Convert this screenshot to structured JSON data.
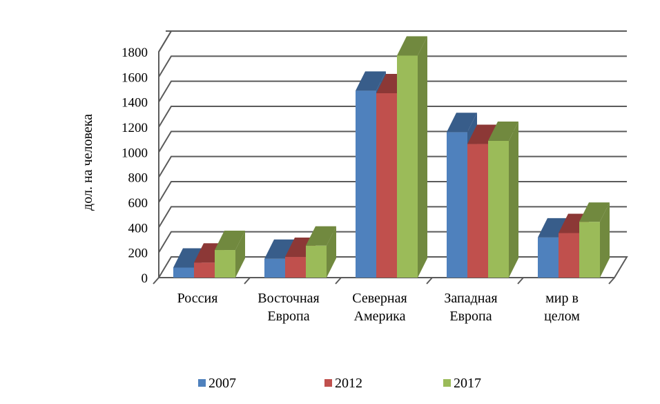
{
  "chart_data": {
    "type": "bar",
    "ylabel": "дол. на человека",
    "ylim": [
      0,
      1800
    ],
    "yticks": [
      0,
      200,
      400,
      600,
      800,
      1000,
      1200,
      1400,
      1600,
      1800
    ],
    "categories": [
      [
        "Россия"
      ],
      [
        "Восточная",
        "Европа"
      ],
      [
        "Северная",
        "Америка"
      ],
      [
        "Западная",
        "Европа"
      ],
      [
        "мир в",
        "целом"
      ]
    ],
    "series": [
      {
        "name": "2007",
        "color": "#4f81bd",
        "top": "#385d8a",
        "side": "#385d8a",
        "values": [
          80,
          150,
          1490,
          1160,
          320
        ]
      },
      {
        "name": "2012",
        "color": "#c0504d",
        "top": "#8c3836",
        "side": "#8c3836",
        "values": [
          120,
          165,
          1470,
          1065,
          355
        ]
      },
      {
        "name": "2017",
        "color": "#9bbb59",
        "top": "#71893f",
        "side": "#71893f",
        "values": [
          220,
          255,
          1770,
          1090,
          445
        ]
      }
    ],
    "grid": true,
    "legend": "bottom"
  }
}
